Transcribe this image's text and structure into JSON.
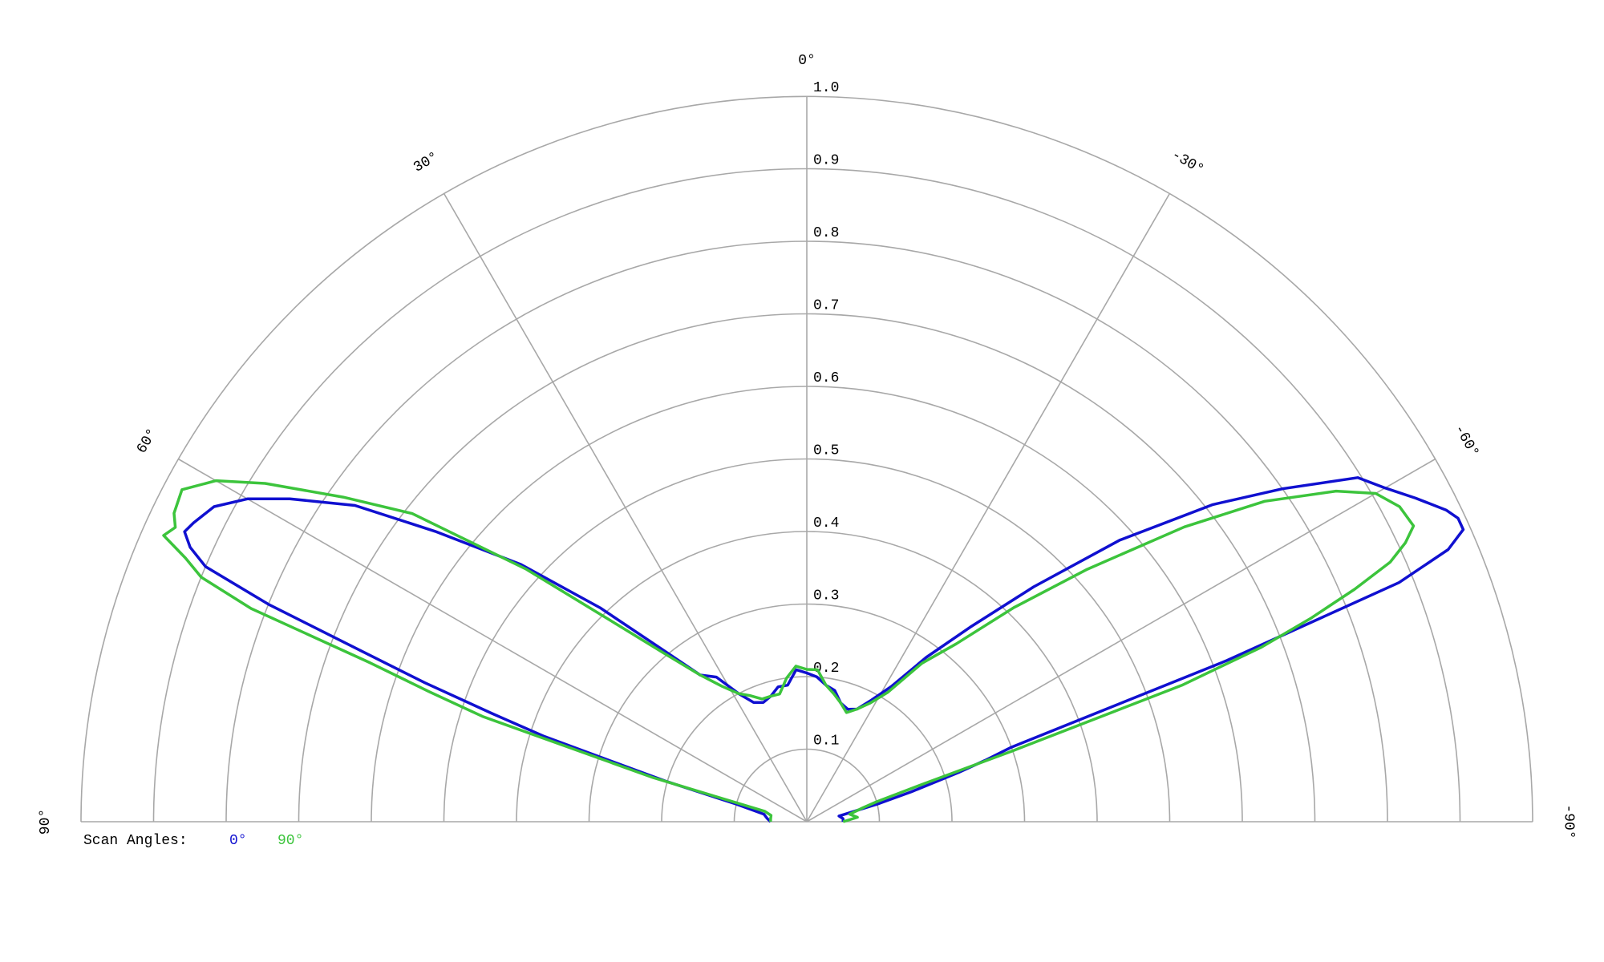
{
  "chart_data": {
    "type": "polar",
    "theta": [
      -90,
      -85,
      -80,
      -76,
      -74,
      -72,
      -71,
      -70,
      -69,
      -68,
      -67,
      -66,
      -65,
      -64,
      -62,
      -60,
      -58,
      -55,
      -52,
      -48,
      -44,
      -40,
      -36,
      -32,
      -28,
      -24,
      -20,
      -16,
      -12,
      -8,
      -4,
      0,
      4,
      8,
      12,
      16,
      20,
      24,
      28,
      32,
      36,
      40,
      44,
      48,
      52,
      55,
      58,
      60,
      62,
      64,
      65,
      66,
      67,
      68,
      69,
      70,
      71,
      72,
      74,
      76,
      80,
      85,
      90
    ],
    "series": [
      {
        "name": "0°",
        "color": "#1010d0",
        "r": [
          0.05,
          0.05,
          0.045,
          0.1,
          0.15,
          0.22,
          0.26,
          0.3,
          0.62,
          0.88,
          0.96,
          0.99,
          0.99,
          0.98,
          0.95,
          0.92,
          0.895,
          0.8,
          0.71,
          0.58,
          0.45,
          0.35,
          0.28,
          0.22,
          0.19,
          0.17,
          0.165,
          0.17,
          0.185,
          0.19,
          0.2,
          0.205,
          0.21,
          0.19,
          0.19,
          0.18,
          0.175,
          0.18,
          0.2,
          0.235,
          0.25,
          0.31,
          0.41,
          0.53,
          0.65,
          0.76,
          0.84,
          0.89,
          0.925,
          0.94,
          0.946,
          0.93,
          0.9,
          0.8,
          0.66,
          0.56,
          0.46,
          0.38,
          0.2,
          0.1,
          0.06,
          0.055,
          0.05
        ]
      },
      {
        "name": "90°",
        "color": "#3cc43c",
        "r": [
          0.05,
          0.07,
          0.06,
          0.08,
          0.1,
          0.17,
          0.3,
          0.55,
          0.67,
          0.75,
          0.82,
          0.88,
          0.91,
          0.93,
          0.925,
          0.905,
          0.86,
          0.77,
          0.66,
          0.52,
          0.41,
          0.32,
          0.27,
          0.21,
          0.185,
          0.17,
          0.16,
          0.17,
          0.18,
          0.19,
          0.21,
          0.21,
          0.215,
          0.2,
          0.18,
          0.18,
          0.18,
          0.19,
          0.2,
          0.22,
          0.25,
          0.3,
          0.38,
          0.52,
          0.69,
          0.78,
          0.88,
          0.94,
          0.975,
          0.97,
          0.96,
          0.97,
          0.93,
          0.9,
          0.82,
          0.64,
          0.55,
          0.47,
          0.22,
          0.06,
          0.05,
          0.05,
          0.05
        ]
      }
    ],
    "rlim": [
      0,
      1
    ],
    "rticks": [
      0.1,
      0.2,
      0.3,
      0.4,
      0.5,
      0.6,
      0.7,
      0.8,
      0.9,
      {
        "value": 1,
        "label": "1.0"
      }
    ],
    "thetalim": [
      -90,
      90
    ],
    "thetaticks": [
      {
        "value": 90,
        "label": "90°"
      },
      {
        "value": 60,
        "label": "60°"
      },
      {
        "value": 30,
        "label": "30°"
      },
      {
        "value": 0,
        "label": "0°"
      },
      {
        "value": -30,
        "label": "-30°"
      },
      {
        "value": -60,
        "label": "-60°"
      },
      {
        "value": -90,
        "label": "-90°"
      }
    ],
    "legend_title": "Scan Angles:",
    "grid": true
  }
}
